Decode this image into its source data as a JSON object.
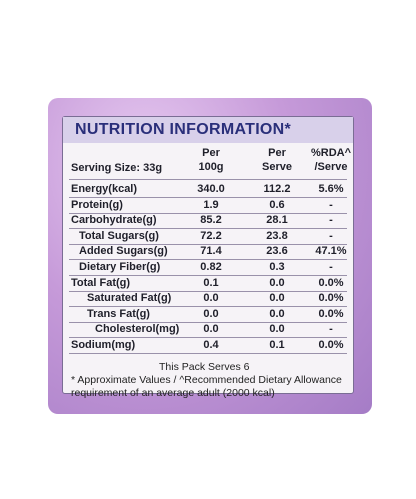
{
  "label": {
    "title": "NUTRITION INFORMATION*",
    "header": {
      "serving_size": "Serving Size: 33g",
      "columns": [
        [
          "Per",
          "100g"
        ],
        [
          "Per",
          "Serve"
        ],
        [
          "%RDA^",
          "/Serve"
        ]
      ]
    },
    "rows": [
      [
        "Energy(kcal)",
        "340.0",
        "112.2",
        "5.6%"
      ],
      [
        "Protein(g)",
        "1.9",
        "0.6",
        "-"
      ],
      [
        "Carbohydrate(g)",
        "85.2",
        "28.1",
        "-"
      ],
      [
        "Total Sugars(g)",
        "72.2",
        "23.8",
        "-"
      ],
      [
        "Added Sugars(g)",
        "71.4",
        "23.6",
        "47.1%"
      ],
      [
        "Dietary Fiber(g)",
        "0.82",
        "0.3",
        "-"
      ],
      [
        "Total Fat(g)",
        "0.1",
        "0.0",
        "0.0%"
      ],
      [
        "Saturated Fat(g)",
        "0.0",
        "0.0",
        "0.0%"
      ],
      [
        "Trans Fat(g)",
        "0.0",
        "0.0",
        "0.0%"
      ],
      [
        "Cholesterol(mg)",
        "0.0",
        "0.0",
        "-"
      ],
      [
        "Sodium(mg)",
        "0.4",
        "0.1",
        "0.0%"
      ]
    ],
    "footer": [
      "This Pack Serves 6",
      "* Approximate Values / ^Recommended Dietary Allowance",
      "requirement of an average adult (2000 kcal)"
    ]
  }
}
